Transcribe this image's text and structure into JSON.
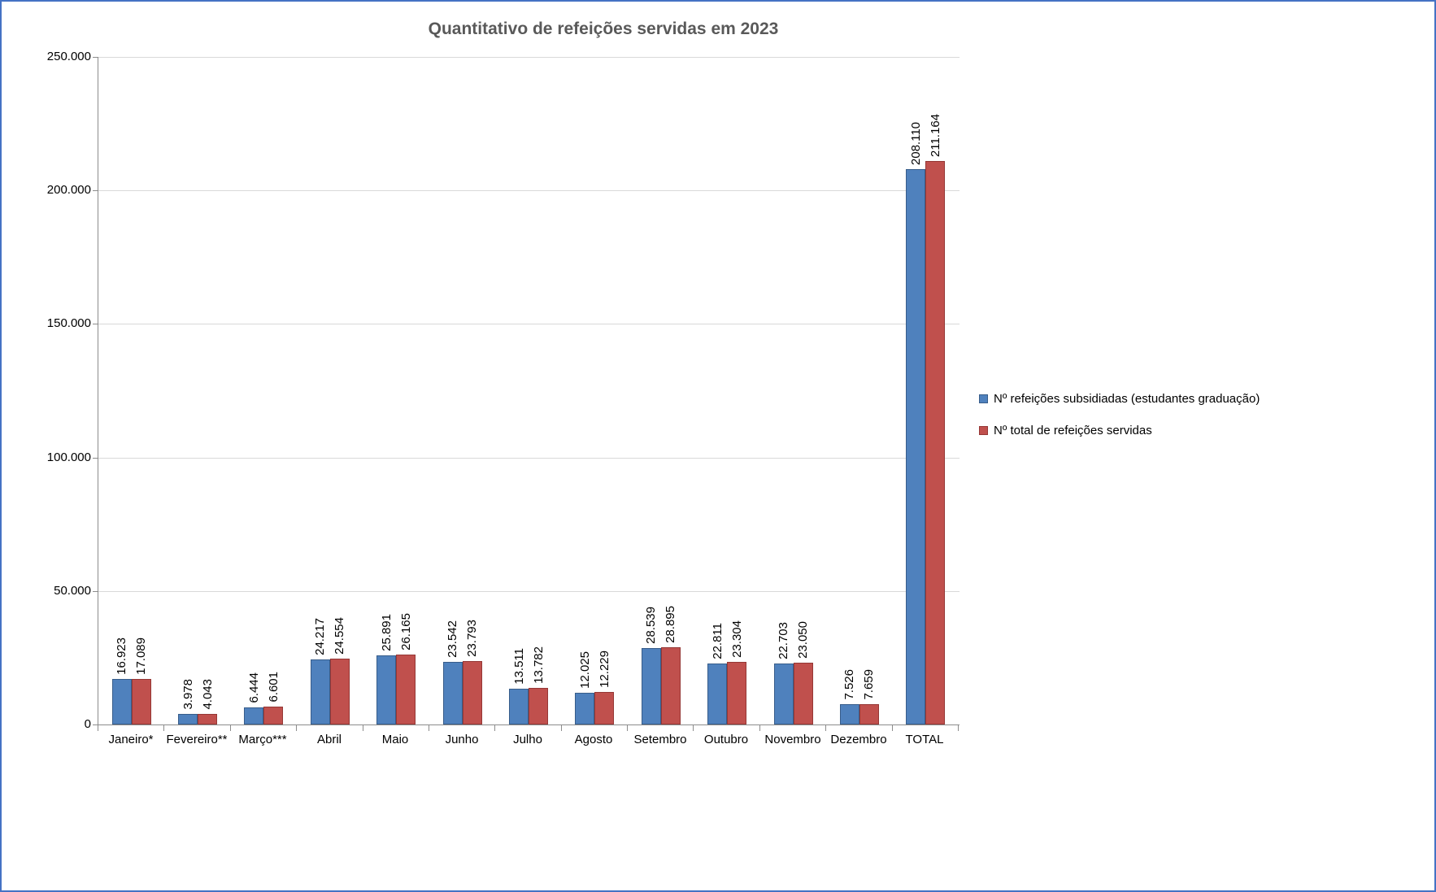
{
  "chart_data": {
    "type": "bar",
    "title": "Quantitativo de refeições servidas em 2023",
    "categories": [
      "Janeiro*",
      "Fevereiro**",
      "Março***",
      "Abril",
      "Maio",
      "Junho",
      "Julho",
      "Agosto",
      "Setembro",
      "Outubro",
      "Novembro",
      "Dezembro",
      "TOTAL"
    ],
    "series": [
      {
        "name": "Nº refeições subsidiadas (estudantes graduação)",
        "fill": "#4F81BD",
        "stroke": "#385D8A",
        "values": [
          16923,
          3978,
          6444,
          24217,
          25891,
          23542,
          13511,
          12025,
          28539,
          22811,
          22703,
          7526,
          208110
        ],
        "labels": [
          "16.923",
          "3.978",
          "6.444",
          "24.217",
          "25.891",
          "23.542",
          "13.511",
          "12.025",
          "28.539",
          "22.811",
          "22.703",
          "7.526",
          "208.110"
        ]
      },
      {
        "name": "Nº total de refeições servidas",
        "fill": "#C0504D",
        "stroke": "#953735",
        "values": [
          17089,
          4043,
          6601,
          24554,
          26165,
          23793,
          13782,
          12229,
          28895,
          23304,
          23050,
          7659,
          211164
        ],
        "labels": [
          "17.089",
          "4.043",
          "6.601",
          "24.554",
          "26.165",
          "23.793",
          "13.782",
          "12.229",
          "28.895",
          "23.304",
          "23.050",
          "7.659",
          "211.164"
        ]
      }
    ],
    "xlabel": "",
    "ylabel": "",
    "ylim": [
      0,
      250000
    ],
    "ytick_step": 50000,
    "ytick_labels": [
      "0",
      "50.000",
      "100.000",
      "150.000",
      "200.000",
      "250.000"
    ],
    "grid": true,
    "legend_position": "right"
  },
  "colors": {
    "chart_border": "#4472C4",
    "title": "#595959",
    "gridline": "#D9D9D9",
    "axis_line": "#8C8C8C",
    "data_label": "#000000"
  }
}
